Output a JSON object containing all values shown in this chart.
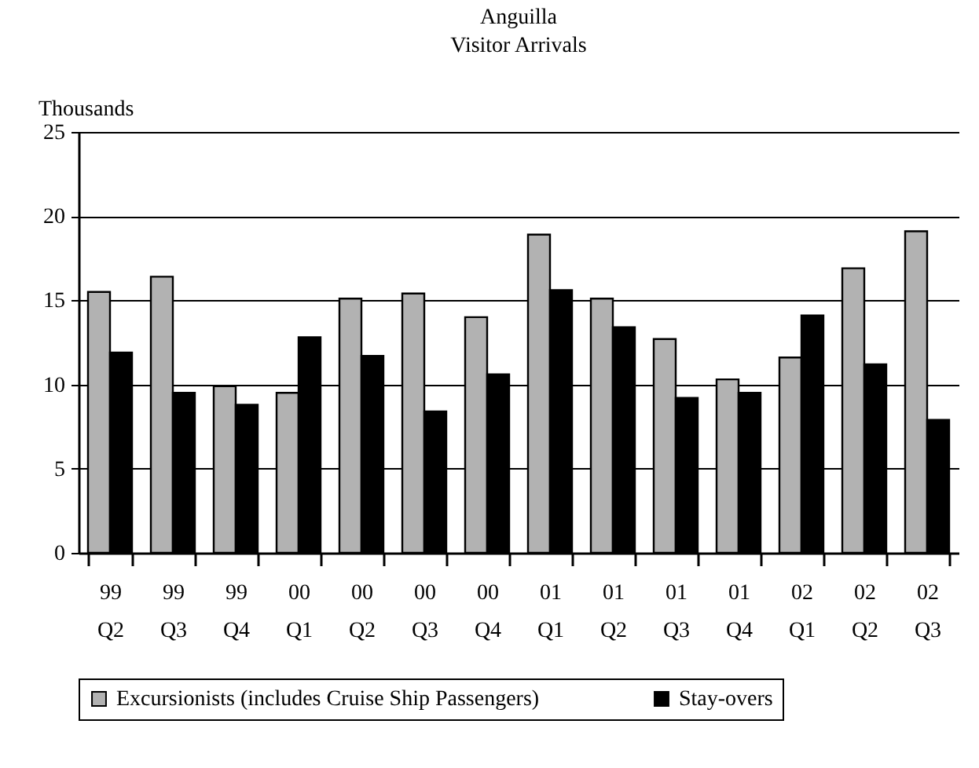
{
  "chart_data": {
    "type": "bar",
    "title": "Anguilla",
    "subtitle": "Visitor Arrivals",
    "ylabel": "Thousands",
    "categories": [
      "99 Q2",
      "99 Q3",
      "99 Q4",
      "00 Q1",
      "00 Q2",
      "00 Q3",
      "00 Q4",
      "01 Q1",
      "01 Q2",
      "01 Q3",
      "01 Q4",
      "02 Q1",
      "02 Q2",
      "02 Q3"
    ],
    "series": [
      {
        "name": "Excursionists (includes Cruise Ship Passengers)",
        "color": "#b2b2b2",
        "values": [
          15.5,
          16.4,
          9.9,
          9.5,
          15.1,
          15.4,
          14.0,
          18.9,
          15.1,
          12.7,
          10.3,
          11.6,
          16.9,
          19.1
        ]
      },
      {
        "name": "Stay-overs",
        "color": "#000000",
        "values": [
          11.9,
          9.5,
          8.8,
          12.8,
          11.7,
          8.4,
          10.6,
          15.6,
          13.4,
          9.2,
          9.5,
          14.1,
          11.2,
          7.9
        ]
      }
    ],
    "ylim": [
      0,
      25
    ],
    "yticks": [
      0,
      5,
      10,
      15,
      20,
      25
    ],
    "grid": "y",
    "legend": "bottom"
  }
}
